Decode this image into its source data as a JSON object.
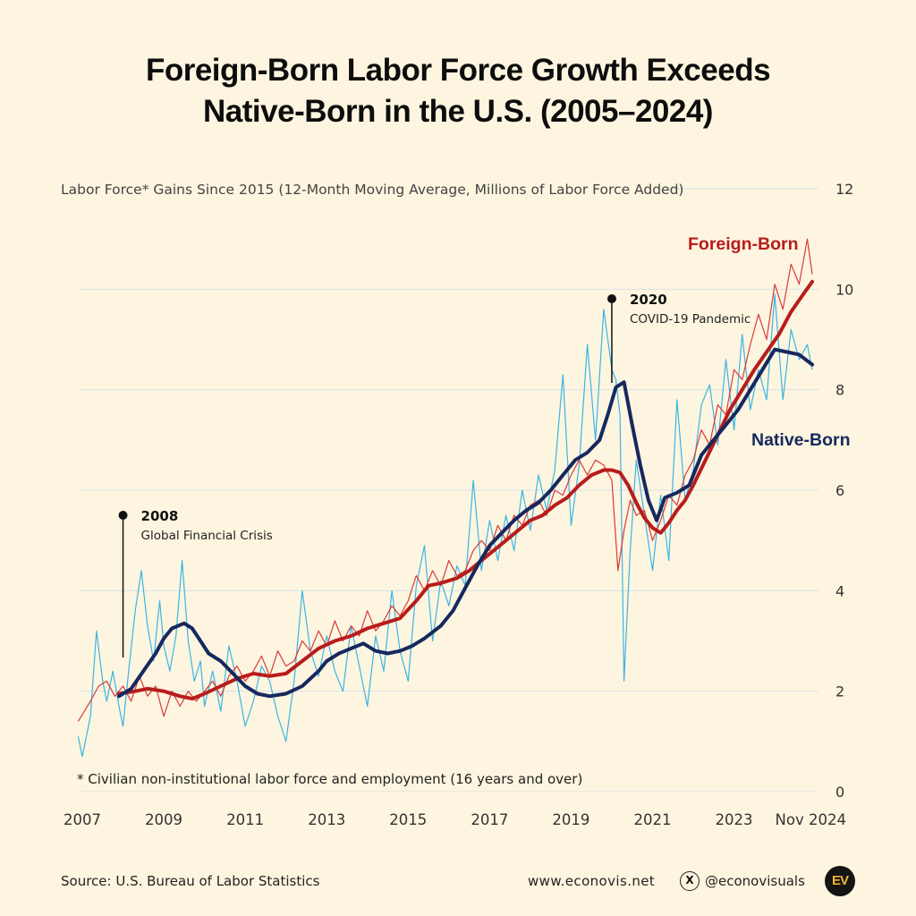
{
  "title_line1": "Foreign-Born Labor Force Growth Exceeds",
  "title_line2": "Native-Born in the U.S. (2005–2024)",
  "footer": {
    "source": "Source: U.S. Bureau of Labor Statistics",
    "website": "www.econovis.net",
    "x_glyph": "X",
    "handle": "@econovisuals",
    "logo_text": "EV"
  },
  "colors": {
    "background": "#fdf5df",
    "foreign_born": "#b81c1c",
    "native_born": "#16285e",
    "monthly_foreign": "#d83a3a",
    "monthly_native": "#3cb4e6",
    "grid": "#d4e3e6"
  },
  "chart_data": {
    "type": "line",
    "ylabel": "Labor Force* Gains Since 2015 (12-Month Moving Average, Millions of Labor Force Added)",
    "ylim": [
      0,
      12
    ],
    "yticks": [
      "0",
      "2",
      "4",
      "6",
      "8",
      "10",
      "12"
    ],
    "xlim": [
      2007,
      2024.92
    ],
    "xticks": [
      {
        "value": 2007,
        "label": "2007"
      },
      {
        "value": 2009,
        "label": "2009"
      },
      {
        "value": 2011,
        "label": "2011"
      },
      {
        "value": 2013,
        "label": "2013"
      },
      {
        "value": 2015,
        "label": "2015"
      },
      {
        "value": 2017,
        "label": "2017"
      },
      {
        "value": 2019,
        "label": "2019"
      },
      {
        "value": 2021,
        "label": "2021"
      },
      {
        "value": 2023,
        "label": "2023"
      },
      {
        "value": 2024.92,
        "label": "Nov 2024"
      }
    ],
    "grid": "horizontal",
    "footnote": "* Civilian non-institutional labor force and employment (16 years and over)",
    "series": [
      {
        "name": "Foreign-Born",
        "kind": "12-month moving average",
        "x": [
          2007.9,
          2008.3,
          2008.6,
          2009.0,
          2009.4,
          2009.7,
          2010.0,
          2010.4,
          2010.8,
          2011.2,
          2011.6,
          2012.0,
          2012.4,
          2012.8,
          2013.2,
          2013.6,
          2014.0,
          2014.4,
          2014.8,
          2015.2,
          2015.5,
          2015.8,
          2016.2,
          2016.5,
          2016.8,
          2017.1,
          2017.4,
          2017.7,
          2018.0,
          2018.3,
          2018.6,
          2018.9,
          2019.2,
          2019.5,
          2019.8,
          2020.0,
          2020.2,
          2020.4,
          2020.6,
          2020.8,
          2021.0,
          2021.2,
          2021.4,
          2021.6,
          2021.8,
          2022.0,
          2022.3,
          2022.6,
          2022.9,
          2023.2,
          2023.5,
          2023.8,
          2024.1,
          2024.4,
          2024.7,
          2024.92
        ],
        "y": [
          1.95,
          2.0,
          2.05,
          2.0,
          1.9,
          1.85,
          1.95,
          2.1,
          2.25,
          2.35,
          2.3,
          2.35,
          2.6,
          2.85,
          3.0,
          3.1,
          3.25,
          3.35,
          3.45,
          3.8,
          4.1,
          4.15,
          4.25,
          4.4,
          4.6,
          4.8,
          5.0,
          5.2,
          5.4,
          5.5,
          5.7,
          5.85,
          6.1,
          6.3,
          6.4,
          6.4,
          6.35,
          6.1,
          5.75,
          5.45,
          5.25,
          5.15,
          5.35,
          5.6,
          5.8,
          6.1,
          6.6,
          7.1,
          7.6,
          8.0,
          8.4,
          8.75,
          9.1,
          9.55,
          9.9,
          10.15
        ]
      },
      {
        "name": "Native-Born",
        "kind": "12-month moving average",
        "x": [
          2007.9,
          2008.2,
          2008.5,
          2008.8,
          2009.0,
          2009.2,
          2009.5,
          2009.7,
          2009.9,
          2010.1,
          2010.4,
          2010.7,
          2011.0,
          2011.3,
          2011.6,
          2012.0,
          2012.4,
          2012.8,
          2013.0,
          2013.3,
          2013.6,
          2013.9,
          2014.2,
          2014.5,
          2014.8,
          2015.1,
          2015.4,
          2015.8,
          2016.1,
          2016.4,
          2016.7,
          2017.0,
          2017.3,
          2017.6,
          2017.9,
          2018.2,
          2018.5,
          2018.8,
          2019.1,
          2019.4,
          2019.7,
          2019.9,
          2020.1,
          2020.3,
          2020.5,
          2020.7,
          2020.9,
          2021.1,
          2021.3,
          2021.6,
          2021.9,
          2022.2,
          2022.5,
          2022.8,
          2023.1,
          2023.4,
          2023.7,
          2024.0,
          2024.3,
          2024.6,
          2024.92
        ],
        "y": [
          1.9,
          2.05,
          2.4,
          2.75,
          3.05,
          3.25,
          3.35,
          3.25,
          3.0,
          2.75,
          2.6,
          2.35,
          2.1,
          1.95,
          1.9,
          1.95,
          2.1,
          2.4,
          2.6,
          2.75,
          2.85,
          2.95,
          2.8,
          2.75,
          2.8,
          2.9,
          3.05,
          3.3,
          3.6,
          4.05,
          4.5,
          4.9,
          5.15,
          5.4,
          5.6,
          5.75,
          6.0,
          6.3,
          6.6,
          6.75,
          7.0,
          7.5,
          8.05,
          8.15,
          7.3,
          6.5,
          5.8,
          5.4,
          5.85,
          5.95,
          6.1,
          6.7,
          7.0,
          7.3,
          7.6,
          8.0,
          8.4,
          8.8,
          8.75,
          8.7,
          8.5
        ]
      },
      {
        "kind": "monthly",
        "x": [
          2006.9,
          2007.2,
          2007.4,
          2007.6,
          2007.8,
          2008.0,
          2008.2,
          2008.4,
          2008.6,
          2008.8,
          2009.0,
          2009.2,
          2009.4,
          2009.6,
          2009.8,
          2010.0,
          2010.2,
          2010.4,
          2010.6,
          2010.8,
          2011.0,
          2011.2,
          2011.4,
          2011.6,
          2011.8,
          2012.0,
          2012.2,
          2012.4,
          2012.6,
          2012.8,
          2013.0,
          2013.2,
          2013.4,
          2013.6,
          2013.8,
          2014.0,
          2014.2,
          2014.4,
          2014.6,
          2014.8,
          2015.0,
          2015.2,
          2015.4,
          2015.6,
          2015.8,
          2016.0,
          2016.2,
          2016.4,
          2016.6,
          2016.8,
          2017.0,
          2017.2,
          2017.4,
          2017.6,
          2017.8,
          2018.0,
          2018.2,
          2018.4,
          2018.6,
          2018.8,
          2019.0,
          2019.2,
          2019.4,
          2019.6,
          2019.8,
          2020.0,
          2020.15,
          2020.3,
          2020.45,
          2020.6,
          2020.8,
          2021.0,
          2021.2,
          2021.4,
          2021.6,
          2021.8,
          2022.0,
          2022.2,
          2022.4,
          2022.6,
          2022.8,
          2023.0,
          2023.2,
          2023.4,
          2023.6,
          2023.8,
          2024.0,
          2024.2,
          2024.4,
          2024.6,
          2024.8,
          2024.92
        ],
        "y": [
          1.4,
          1.8,
          2.1,
          2.2,
          1.9,
          2.1,
          1.8,
          2.3,
          1.9,
          2.1,
          1.5,
          2.0,
          1.7,
          2.0,
          1.8,
          2.0,
          2.2,
          1.9,
          2.3,
          2.5,
          2.2,
          2.4,
          2.7,
          2.3,
          2.8,
          2.5,
          2.6,
          3.0,
          2.8,
          3.2,
          2.9,
          3.4,
          3.0,
          3.3,
          3.1,
          3.6,
          3.2,
          3.4,
          3.7,
          3.5,
          3.8,
          4.3,
          4.0,
          4.4,
          4.1,
          4.6,
          4.3,
          4.4,
          4.8,
          5.0,
          4.8,
          5.3,
          5.0,
          5.5,
          5.3,
          5.7,
          5.8,
          5.5,
          6.0,
          5.9,
          6.3,
          6.6,
          6.3,
          6.6,
          6.5,
          6.2,
          4.4,
          5.2,
          5.8,
          5.5,
          5.6,
          5.0,
          5.4,
          5.9,
          5.7,
          6.3,
          6.6,
          7.2,
          6.9,
          7.7,
          7.5,
          8.4,
          8.2,
          8.9,
          9.5,
          9.0,
          10.1,
          9.6,
          10.5,
          10.1,
          11.0,
          10.3
        ]
      },
      {
        "kind": "monthly",
        "x": [
          2006.9,
          2007.0,
          2007.2,
          2007.35,
          2007.5,
          2007.6,
          2007.75,
          2007.9,
          2008.0,
          2008.15,
          2008.3,
          2008.45,
          2008.6,
          2008.75,
          2008.9,
          2009.0,
          2009.15,
          2009.3,
          2009.45,
          2009.6,
          2009.75,
          2009.9,
          2010.0,
          2010.2,
          2010.4,
          2010.6,
          2010.8,
          2011.0,
          2011.2,
          2011.4,
          2011.6,
          2011.8,
          2012.0,
          2012.2,
          2012.4,
          2012.6,
          2012.8,
          2013.0,
          2013.2,
          2013.4,
          2013.6,
          2013.8,
          2014.0,
          2014.2,
          2014.4,
          2014.6,
          2014.8,
          2015.0,
          2015.2,
          2015.4,
          2015.6,
          2015.8,
          2016.0,
          2016.2,
          2016.4,
          2016.6,
          2016.8,
          2017.0,
          2017.2,
          2017.4,
          2017.6,
          2017.8,
          2018.0,
          2018.2,
          2018.4,
          2018.6,
          2018.8,
          2019.0,
          2019.2,
          2019.4,
          2019.6,
          2019.8,
          2020.0,
          2020.1,
          2020.2,
          2020.3,
          2020.45,
          2020.6,
          2020.8,
          2021.0,
          2021.2,
          2021.4,
          2021.6,
          2021.8,
          2022.0,
          2022.2,
          2022.4,
          2022.6,
          2022.8,
          2023.0,
          2023.2,
          2023.4,
          2023.6,
          2023.8,
          2024.0,
          2024.2,
          2024.4,
          2024.6,
          2024.8,
          2024.92
        ],
        "y": [
          1.1,
          0.7,
          1.5,
          3.2,
          2.2,
          1.8,
          2.4,
          1.7,
          1.3,
          2.5,
          3.6,
          4.4,
          3.3,
          2.6,
          3.8,
          2.9,
          2.4,
          3.1,
          4.6,
          3.0,
          2.2,
          2.6,
          1.7,
          2.4,
          1.6,
          2.9,
          2.2,
          1.3,
          1.8,
          2.5,
          2.2,
          1.5,
          1.0,
          2.2,
          4.0,
          2.8,
          2.3,
          3.1,
          2.4,
          2.0,
          3.3,
          2.5,
          1.7,
          3.1,
          2.4,
          4.0,
          2.8,
          2.2,
          4.1,
          4.9,
          3.0,
          4.2,
          3.7,
          4.5,
          4.1,
          6.2,
          4.4,
          5.4,
          4.6,
          5.5,
          4.8,
          6.0,
          5.2,
          6.3,
          5.6,
          6.4,
          8.3,
          5.3,
          6.5,
          8.9,
          7.0,
          9.6,
          8.4,
          8.2,
          7.5,
          2.2,
          4.8,
          6.6,
          5.5,
          4.4,
          5.9,
          4.6,
          7.8,
          5.8,
          6.4,
          7.7,
          8.1,
          6.9,
          8.6,
          7.2,
          9.1,
          7.6,
          8.4,
          7.8,
          9.9,
          7.8,
          9.2,
          8.6,
          8.9,
          8.4
        ]
      }
    ],
    "annotations": [
      {
        "x": 2008.0,
        "year": "2008",
        "text": "Global Financial Crisis"
      },
      {
        "x": 2020.0,
        "year": "2020",
        "text": "COVID-19 Pandemic"
      }
    ],
    "series_labels": [
      {
        "text": "Foreign-Born",
        "color": "#b81c1c"
      },
      {
        "text": "Native-Born",
        "color": "#16285e"
      }
    ]
  }
}
